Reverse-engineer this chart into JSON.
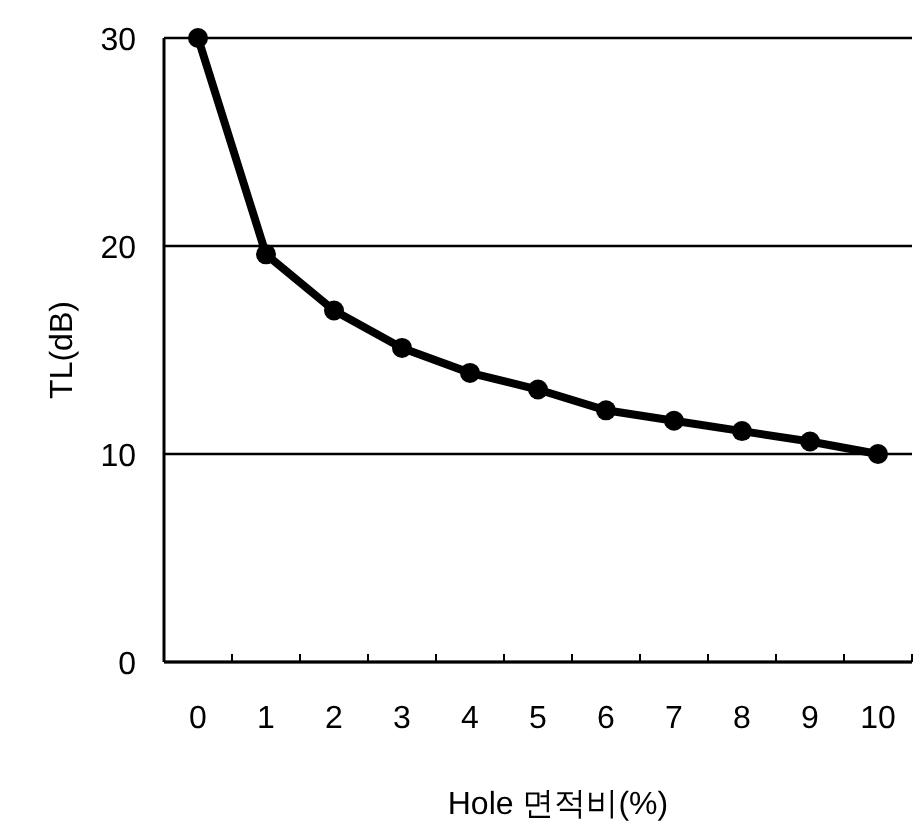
{
  "chart_data": {
    "type": "line",
    "xlabel": "Hole 면적비(%)",
    "ylabel": "TL(dB)",
    "categories": [
      "0",
      "1",
      "2",
      "3",
      "4",
      "5",
      "6",
      "7",
      "8",
      "9",
      "10"
    ],
    "series": [
      {
        "color": "#000000",
        "values": [
          30,
          19.6,
          16.9,
          15.1,
          13.9,
          13.1,
          12.1,
          11.6,
          11.1,
          10.6,
          10.0
        ]
      }
    ],
    "ylim": [
      0,
      30
    ],
    "yticks": [
      0,
      10,
      20,
      30
    ],
    "grid": "y",
    "marker": "circle",
    "line_style": "solid"
  }
}
